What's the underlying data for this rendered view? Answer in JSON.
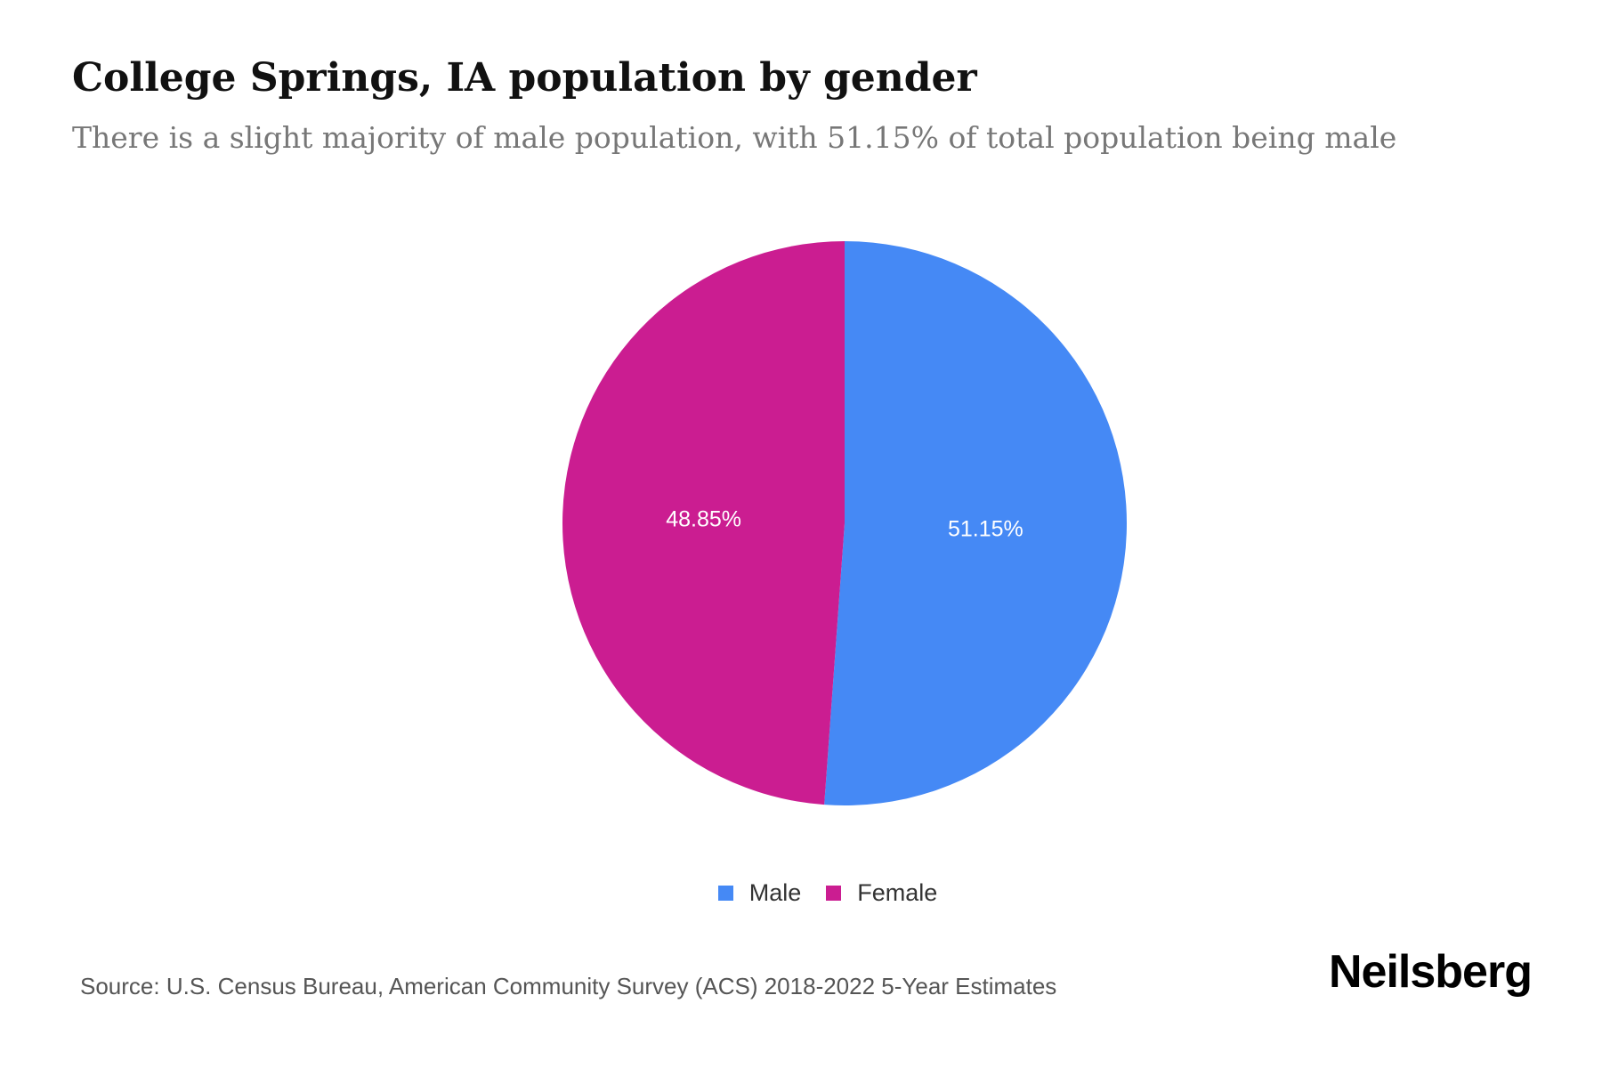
{
  "title": "College Springs, IA population by gender",
  "subtitle": "There is a slight majority of male population, with 51.15% of total population being male",
  "source": "Source: U.S. Census Bureau, American Community Survey (ACS) 2018-2022 5-Year Estimates",
  "logo": "Neilsberg",
  "chart_data": {
    "type": "pie",
    "title": "College Springs, IA population by gender",
    "categories": [
      "Male",
      "Female"
    ],
    "values": [
      51.15,
      48.85
    ],
    "labels": [
      "51.15%",
      "48.85%"
    ],
    "colors": [
      "#4589F5",
      "#CB1D91"
    ],
    "legend_position": "bottom",
    "start_angle": "top, clockwise"
  },
  "legend": [
    {
      "label": "Male",
      "color": "#4589F5"
    },
    {
      "label": "Female",
      "color": "#CB1D91"
    }
  ]
}
